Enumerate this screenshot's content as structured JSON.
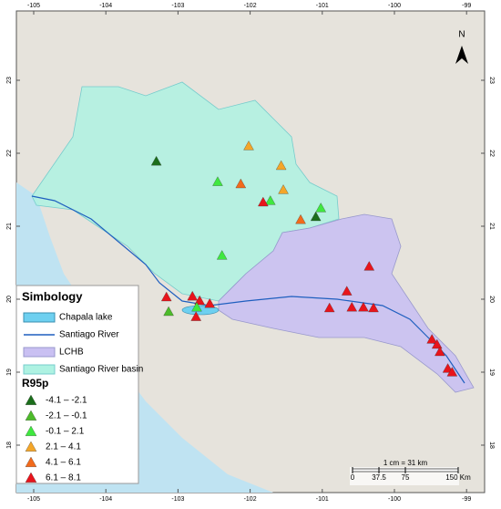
{
  "map": {
    "lon_ticks": [
      -105,
      -104,
      -103,
      -102,
      -101,
      -100,
      -99
    ],
    "lat_ticks": [
      23,
      22,
      21,
      20,
      19,
      18
    ],
    "north": "N",
    "stations": [
      {
        "lon": -103.3,
        "lat": 21.89,
        "class": 0
      },
      {
        "lon": -102.02,
        "lat": 22.1,
        "class": 3
      },
      {
        "lon": -101.57,
        "lat": 21.83,
        "class": 3
      },
      {
        "lon": -102.45,
        "lat": 21.61,
        "class": 2
      },
      {
        "lon": -102.13,
        "lat": 21.58,
        "class": 4
      },
      {
        "lon": -101.54,
        "lat": 21.5,
        "class": 3
      },
      {
        "lon": -101.72,
        "lat": 21.35,
        "class": 2
      },
      {
        "lon": -101.82,
        "lat": 21.33,
        "class": 5
      },
      {
        "lon": -101.02,
        "lat": 21.25,
        "class": 2
      },
      {
        "lon": -101.09,
        "lat": 21.13,
        "class": 0
      },
      {
        "lon": -101.3,
        "lat": 21.09,
        "class": 4
      },
      {
        "lon": -102.39,
        "lat": 20.6,
        "class": 2
      },
      {
        "lon": -100.35,
        "lat": 20.45,
        "class": 5
      },
      {
        "lon": -100.66,
        "lat": 20.11,
        "class": 5
      },
      {
        "lon": -100.9,
        "lat": 19.88,
        "class": 5
      },
      {
        "lon": -100.59,
        "lat": 19.89,
        "class": 5
      },
      {
        "lon": -100.43,
        "lat": 19.89,
        "class": 5
      },
      {
        "lon": -100.29,
        "lat": 19.88,
        "class": 5
      },
      {
        "lon": -103.16,
        "lat": 20.03,
        "class": 5
      },
      {
        "lon": -103.13,
        "lat": 19.83,
        "class": 1
      },
      {
        "lon": -102.8,
        "lat": 20.04,
        "class": 5
      },
      {
        "lon": -102.7,
        "lat": 19.98,
        "class": 5
      },
      {
        "lon": -102.56,
        "lat": 19.94,
        "class": 5
      },
      {
        "lon": -102.74,
        "lat": 19.89,
        "class": 2
      },
      {
        "lon": -102.75,
        "lat": 19.76,
        "class": 5
      },
      {
        "lon": -99.48,
        "lat": 19.45,
        "class": 5
      },
      {
        "lon": -99.41,
        "lat": 19.38,
        "class": 5
      },
      {
        "lon": -99.37,
        "lat": 19.28,
        "class": 5
      },
      {
        "lon": -99.26,
        "lat": 19.05,
        "class": 5
      },
      {
        "lon": -99.2,
        "lat": 19.0,
        "class": 5
      }
    ]
  },
  "legend": {
    "title": "Simbology",
    "layers": [
      "Chapala lake",
      "Santiago River",
      "LCHB",
      "Santiago River basin"
    ],
    "index_title": "R95p",
    "classes": [
      {
        "label": "-4.1 – -2.1",
        "color": "#1b6e1b"
      },
      {
        "label": "-2.1 – -0.1",
        "color": "#4dbb2a"
      },
      {
        "label": "-0.1 – 2.1",
        "color": "#3fe83f"
      },
      {
        "label": "2.1 – 4.1",
        "color": "#f4a629"
      },
      {
        "label": "4.1 – 6.1",
        "color": "#f26a1b"
      },
      {
        "label": "6.1 – 8.1",
        "color": "#e8141b"
      }
    ]
  },
  "scale": {
    "text": "1 cm = 31 km",
    "max": 150,
    "ticks": [
      0,
      37.5,
      75,
      {
        "value": 150,
        "label": "150 Km"
      }
    ]
  }
}
